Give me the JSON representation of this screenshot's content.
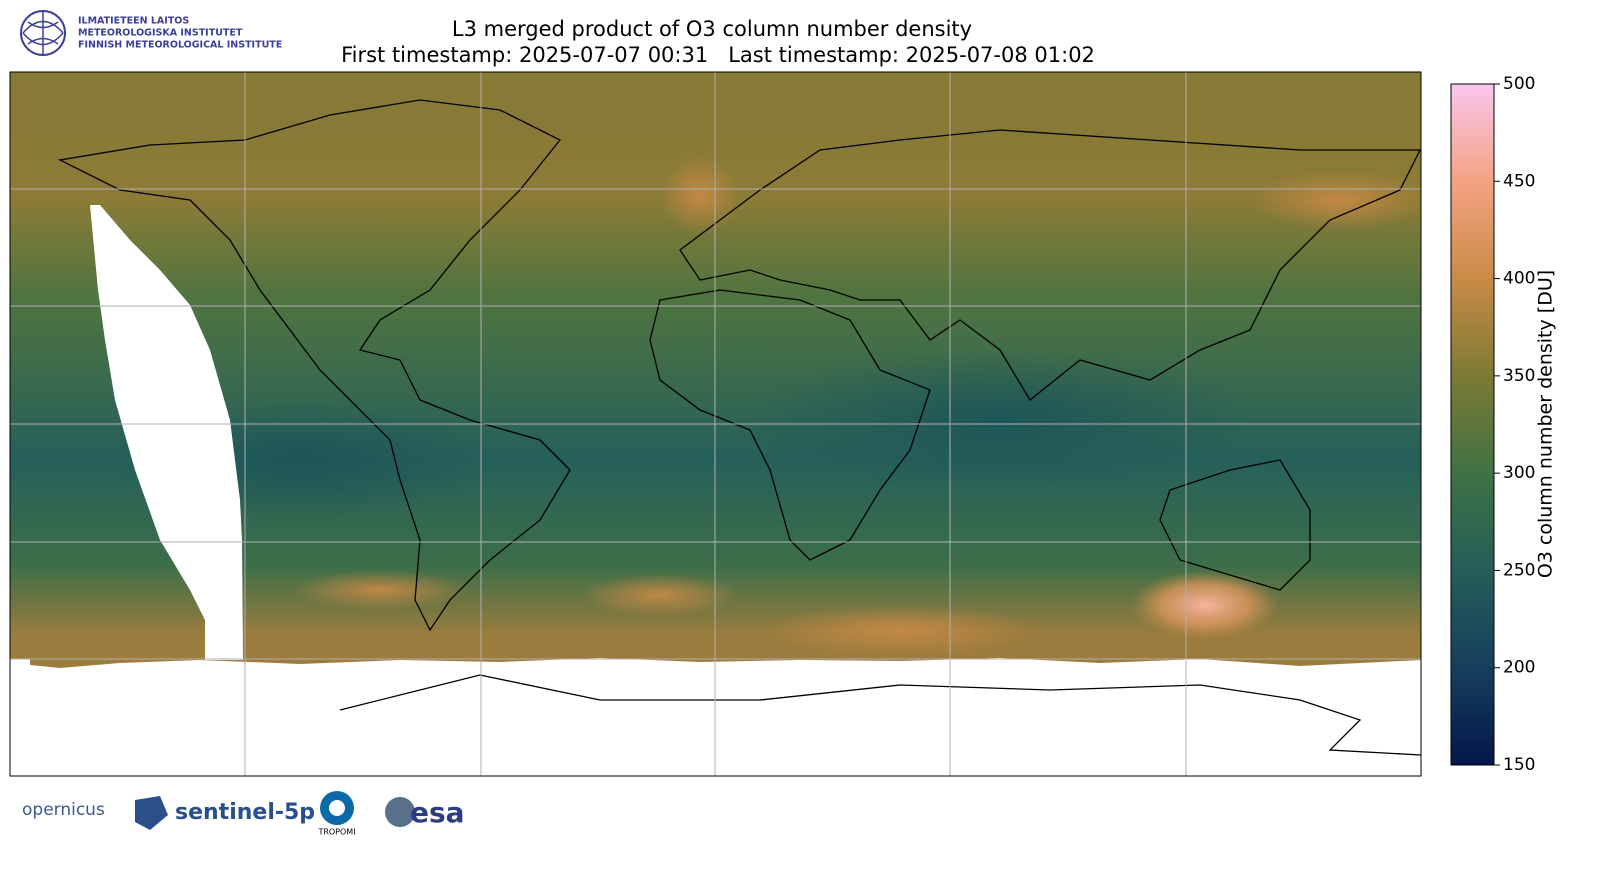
{
  "header": {
    "logo_lines": [
      "ILMATIETEEN LAITOS",
      "METEOROLOGISKA INSTITUTET",
      "FINNISH METEOROLOGICAL INSTITUTE"
    ],
    "title": "L3 merged product of O3 column number density",
    "subtitle": "First timestamp: 2025-07-07 00:31   Last timestamp: 2025-07-08 01:02"
  },
  "colorbar": {
    "label": "O3 column number density [DU]",
    "lim": [
      150,
      500
    ],
    "ticks": [
      150,
      200,
      250,
      300,
      350,
      400,
      450,
      500
    ],
    "colors": [
      "#04164a",
      "#173f5c",
      "#245e58",
      "#3f7244",
      "#7d7a34",
      "#c98b46",
      "#f4a382",
      "#f9c6ee"
    ]
  },
  "footer": {
    "logos": [
      "opernicus",
      "sentinel-5p",
      "TROPOMI",
      "esa"
    ]
  }
}
